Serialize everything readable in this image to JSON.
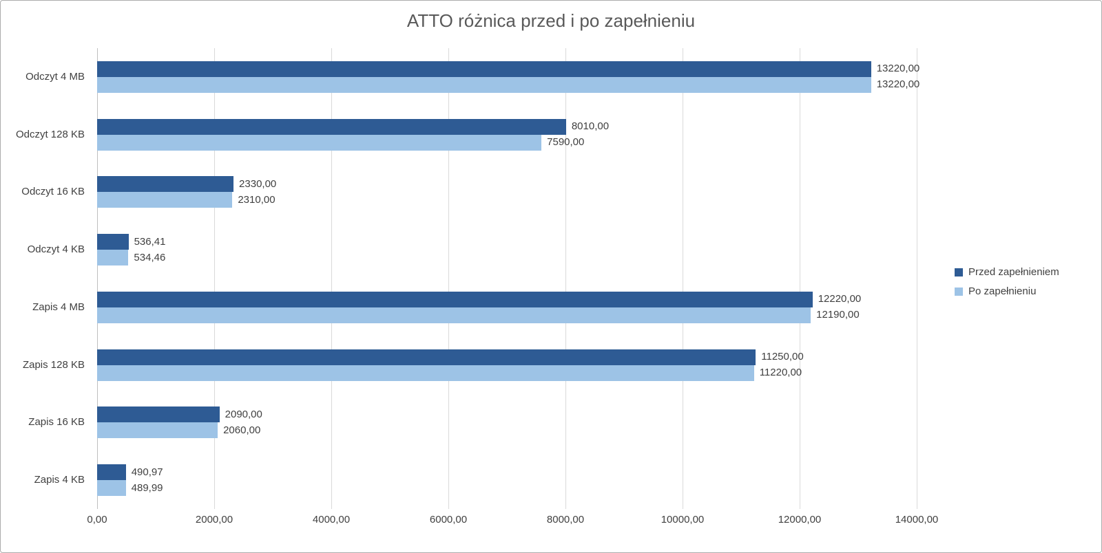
{
  "chart_data": {
    "type": "bar",
    "orientation": "horizontal",
    "title": "ATTO różnica przed i po zapełnieniu",
    "categories": [
      "Odczyt 4 MB",
      "Odczyt 128 KB",
      "Odczyt 16 KB",
      "Odczyt 4 KB",
      "Zapis 4 MB",
      "Zapis 128 KB",
      "Zapis 16 KB",
      "Zapis 4 KB"
    ],
    "series": [
      {
        "name": "Przed zapełnieniem",
        "color": "#2e5b94",
        "values": [
          13220,
          8010,
          2330,
          536.41,
          12220,
          11250,
          2090,
          490.97
        ],
        "labels": [
          "13220,00",
          "8010,00",
          "2330,00",
          "536,41",
          "12220,00",
          "11250,00",
          "2090,00",
          "490,97"
        ]
      },
      {
        "name": "Po zapełnieniu",
        "color": "#9dc3e6",
        "values": [
          13220,
          7590,
          2310,
          534.46,
          12190,
          11220,
          2060,
          489.99
        ],
        "labels": [
          "13220,00",
          "7590,00",
          "2310,00",
          "534,46",
          "12190,00",
          "11220,00",
          "2060,00",
          "489,99"
        ]
      }
    ],
    "x_axis": {
      "min": 0,
      "max": 14000,
      "tick_step": 2000,
      "tick_labels": [
        "0,00",
        "2000,00",
        "4000,00",
        "6000,00",
        "8000,00",
        "10000,00",
        "12000,00",
        "14000,00"
      ]
    },
    "legend_position": "right",
    "grid": true
  }
}
